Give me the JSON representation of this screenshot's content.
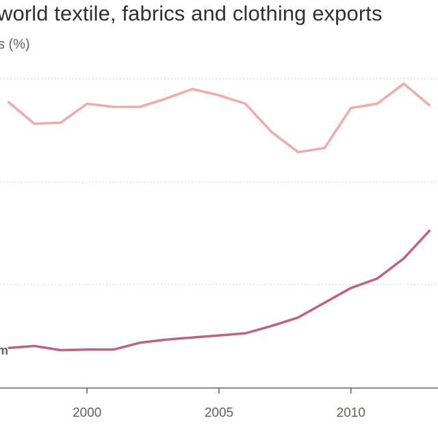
{
  "title": "world textile, fabrics and clothing exports",
  "subtitle": "s (%)",
  "chart_data": {
    "type": "line",
    "title": "world textile, fabrics and clothing exports",
    "subtitle": "s (%)",
    "xlabel": "",
    "ylabel": "",
    "xlim": [
      1996.7,
      2013.3
    ],
    "ylim": [
      0,
      31
    ],
    "grid": true,
    "x_ticks": [
      2000,
      2005,
      2010
    ],
    "x_tick_labels": [
      "2000",
      "2005",
      "2010"
    ],
    "series": [
      {
        "name": "",
        "color": "#f4a9a8",
        "x": [
          1997,
          1998,
          1999,
          2000,
          2001,
          2002,
          2003,
          2004,
          2005,
          2006,
          2007,
          2008,
          2009,
          2010,
          2011,
          2012,
          2013
        ],
        "y": [
          27.2,
          25.1,
          25.2,
          27.0,
          26.7,
          26.7,
          27.5,
          28.4,
          27.8,
          27.0,
          24.3,
          22.4,
          22.8,
          26.6,
          27.0,
          28.9,
          26.8
        ]
      },
      {
        "name": "m",
        "color": "#c0617e",
        "x": [
          1997,
          1998,
          1999,
          2000,
          2001,
          2002,
          2003,
          2004,
          2005,
          2006,
          2007,
          2008,
          2009,
          2010,
          2011,
          2012,
          2013
        ],
        "y": [
          3.8,
          4.0,
          3.6,
          3.65,
          3.65,
          4.3,
          4.6,
          4.8,
          5.0,
          5.2,
          5.9,
          6.7,
          8.1,
          9.5,
          10.4,
          12.3,
          15.0
        ]
      }
    ]
  }
}
